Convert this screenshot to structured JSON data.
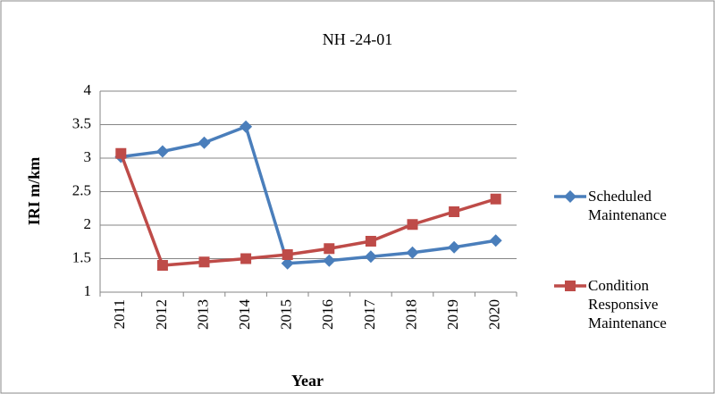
{
  "chart_data": {
    "type": "line",
    "title": "NH -24-01",
    "x_label": "Year",
    "y_label": "IRI m/km",
    "categories": [
      "2011",
      "2012",
      "2013",
      "2014",
      "2015",
      "2016",
      "2017",
      "2018",
      "2019",
      "2020"
    ],
    "series": [
      {
        "name": "Scheduled Maintenance",
        "color": "#4a7ebb",
        "marker": "diamond",
        "values": [
          3.02,
          3.1,
          3.23,
          3.47,
          1.43,
          1.47,
          1.53,
          1.59,
          1.67,
          1.77
        ]
      },
      {
        "name": "Condition Responsive Maintenance",
        "color": "#be4b48",
        "marker": "square",
        "values": [
          3.07,
          1.4,
          1.45,
          1.5,
          1.56,
          1.65,
          1.76,
          2.01,
          2.2,
          2.39
        ]
      }
    ],
    "ylim": [
      1,
      4
    ],
    "yticks": [
      1,
      1.5,
      2,
      2.5,
      3,
      3.5,
      4
    ],
    "grid": true,
    "legend": "right"
  }
}
